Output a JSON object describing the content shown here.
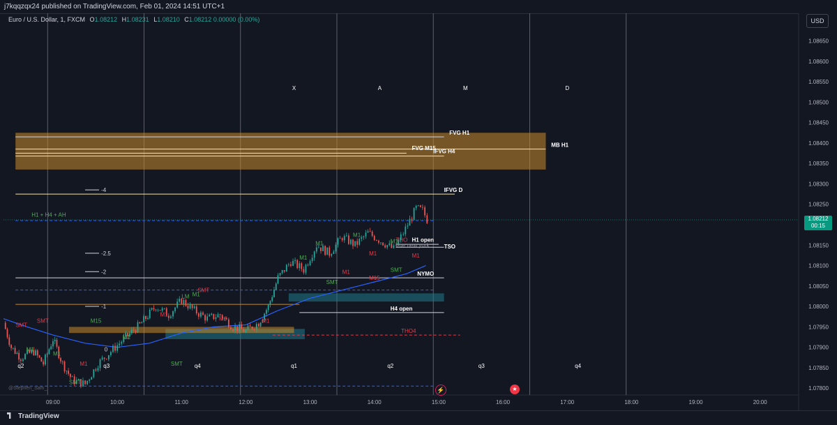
{
  "header": {
    "publisher": "j7kqqzqx24",
    "published_text": "published on TradingView.com, Feb 01, 2024 14:51 UTC+1"
  },
  "legend": {
    "symbol": "Euro / U.S. Dollar, 1, FXCM",
    "o_label": "O",
    "o_value": "1.08212",
    "h_label": "H",
    "h_value": "1.08231",
    "l_label": "L",
    "l_value": "1.08210",
    "c_label": "C",
    "c_value": "1.08212",
    "change": "0.00000 (0.00%)"
  },
  "currency_button": "USD",
  "last_price": {
    "value": "1.08212",
    "countdown": "00:15"
  },
  "footer": {
    "brand": "TradingView",
    "watermark": "@Stephen_Sam_"
  },
  "icons": {
    "bolt": "lightning-icon",
    "flag": "us-flag-icon"
  },
  "colors": {
    "background": "#131722",
    "up": "#26a69a",
    "down": "#ef5350",
    "zone_orange": "#c88a2a",
    "zone_teal": "#1f7a8c",
    "ma": "#2962ff",
    "m1_label_green": "#4caf50",
    "m1_label_red": "#f23645"
  },
  "chart_data": {
    "type": "candlestick",
    "y_axis": {
      "ticks": [
        1.0865,
        1.086,
        1.0855,
        1.085,
        1.0845,
        1.084,
        1.0835,
        1.083,
        1.0825,
        1.082,
        1.0815,
        1.081,
        1.0805,
        1.08,
        1.0795,
        1.079,
        1.0785,
        1.078
      ],
      "tick_labels": [
        "1.08650",
        "1.08600",
        "1.08550",
        "1.08500",
        "1.08450",
        "1.08400",
        "1.08350",
        "1.08300",
        "1.08250",
        "1.08200",
        "1.08150",
        "1.08100",
        "1.08050",
        "1.08000",
        "1.07950",
        "1.07900",
        "1.07850",
        "1.07800"
      ],
      "range": [
        1.07785,
        1.08685
      ]
    },
    "x_axis": {
      "tick_labels": [
        "09:00",
        "10:00",
        "11:00",
        "12:00",
        "13:00",
        "14:00",
        "15:00",
        "16:00",
        "17:00",
        "18:00",
        "19:00",
        "20:00"
      ],
      "range_hours": [
        8.23,
        20.6
      ]
    },
    "price_path": [
      [
        8.23,
        1.0796
      ],
      [
        8.35,
        1.079
      ],
      [
        8.5,
        1.07875
      ],
      [
        8.7,
        1.0789
      ],
      [
        8.85,
        1.0786
      ],
      [
        9.0,
        1.0792
      ],
      [
        9.15,
        1.0786
      ],
      [
        9.3,
        1.0782
      ],
      [
        9.5,
        1.0781
      ],
      [
        9.7,
        1.0786
      ],
      [
        9.9,
        1.0789
      ],
      [
        10.1,
        1.0792
      ],
      [
        10.35,
        1.07955
      ],
      [
        10.6,
        1.08
      ],
      [
        10.8,
        1.0798
      ],
      [
        11.0,
        1.08015
      ],
      [
        11.2,
        1.0799
      ],
      [
        11.4,
        1.0797
      ],
      [
        11.6,
        1.0798
      ],
      [
        11.8,
        1.0795
      ],
      [
        12.0,
        1.0794
      ],
      [
        12.2,
        1.0796
      ],
      [
        12.35,
        1.08
      ],
      [
        12.5,
        1.0807
      ],
      [
        12.7,
        1.0811
      ],
      [
        12.9,
        1.0809
      ],
      [
        13.1,
        1.0815
      ],
      [
        13.3,
        1.0813
      ],
      [
        13.5,
        1.0817
      ],
      [
        13.7,
        1.0815
      ],
      [
        13.9,
        1.0818
      ],
      [
        14.1,
        1.0816
      ],
      [
        14.3,
        1.0814
      ],
      [
        14.45,
        1.0818
      ],
      [
        14.55,
        1.0821
      ],
      [
        14.65,
        1.0824
      ],
      [
        14.75,
        1.08235
      ],
      [
        14.82,
        1.08212
      ]
    ],
    "session_separators": [
      "08:55",
      "10:25",
      "11:55",
      "13:25",
      "14:55",
      "16:25",
      "17:55"
    ],
    "session_labels": [
      {
        "text": "X",
        "x": "12:45",
        "y": 1.0853
      },
      {
        "text": "A",
        "x": "14:05",
        "y": 1.0853
      },
      {
        "text": "M",
        "x": "15:25",
        "y": 1.0853
      },
      {
        "text": "D",
        "x": "17:00",
        "y": 1.0853
      },
      {
        "text": "q2",
        "x": "08:30",
        "y": 1.0785
      },
      {
        "text": "q3",
        "x": "09:50",
        "y": 1.0785
      },
      {
        "text": "q4",
        "x": "11:15",
        "y": 1.0785
      },
      {
        "text": "q1",
        "x": "12:45",
        "y": 1.0785
      },
      {
        "text": "q2",
        "x": "14:15",
        "y": 1.0785
      },
      {
        "text": "q3",
        "x": "15:40",
        "y": 1.0785
      },
      {
        "text": "q4",
        "x": "17:10",
        "y": 1.0785
      }
    ],
    "zones": [
      {
        "label": "FVG H1 / IFVG H4 zone",
        "top": 1.08425,
        "bottom": 1.08335,
        "start": "08:25",
        "end": "16:40",
        "color": "#c88a2a"
      },
      {
        "label": "teal zone",
        "top": 1.08032,
        "bottom": 1.08012,
        "start": "12:40",
        "end": "15:05",
        "color": "#1f7a8c"
      },
      {
        "label": "teal zone low",
        "top": 1.07945,
        "bottom": 1.0792,
        "start": "10:45",
        "end": "12:55",
        "color": "#1f7a8c"
      },
      {
        "label": "orange zone low",
        "top": 1.0795,
        "bottom": 1.07935,
        "start": "09:15",
        "end": "12:45",
        "color": "#c88a2a"
      }
    ],
    "levels": [
      {
        "label": "FVG H1",
        "price": 1.08415,
        "start": "08:25",
        "end": "15:05",
        "color": "#d1d4dc",
        "style": "solid"
      },
      {
        "label": "FVG M15",
        "price": 1.08375,
        "start": "08:25",
        "end": "14:30",
        "color": "#f5e6a8",
        "style": "solid"
      },
      {
        "label": "IFVG H4",
        "price": 1.08368,
        "start": "08:25",
        "end": "15:05",
        "color": "#f5e6a8",
        "style": "solid"
      },
      {
        "label": "MB H1",
        "price": 1.08385,
        "start": "08:25",
        "end": "16:40",
        "color": "#f5e6a8",
        "style": "solid"
      },
      {
        "label": "IFVG D",
        "price": 1.08275,
        "start": "08:25",
        "end": "15:15",
        "color": "#f5e6a8",
        "style": "solid"
      },
      {
        "label": "H1 open",
        "price": 1.08152,
        "start": "14:20",
        "end": "15:00",
        "color": "#d1d4dc",
        "style": "solid"
      },
      {
        "label": "TSO",
        "price": 1.08145,
        "start": "14:20",
        "end": "15:05",
        "color": "#d1d4dc",
        "style": "solid"
      },
      {
        "label": "NYMO",
        "price": 1.0807,
        "start": "08:25",
        "end": "15:05",
        "color": "#d1d4dc",
        "style": "solid"
      },
      {
        "label": "H4 open",
        "price": 1.07985,
        "start": "12:50",
        "end": "15:05",
        "color": "#d1d4dc",
        "style": "solid"
      },
      {
        "label": "dashed blue 1",
        "price": 1.0821,
        "start": "08:25",
        "end": "14:55",
        "color": "#2962ff",
        "style": "dashed"
      },
      {
        "label": "dashed blue 2",
        "price": 1.0804,
        "start": "08:25",
        "end": "14:55",
        "color": "#2962ff",
        "style": "dashed"
      },
      {
        "label": "dashed blue 3",
        "price": 1.07805,
        "start": "08:25",
        "end": "14:55",
        "color": "#2962ff",
        "style": "dashed"
      },
      {
        "label": "orange line",
        "price": 1.08005,
        "start": "08:25",
        "end": "12:50",
        "color": "#c88a2a",
        "style": "solid"
      },
      {
        "label": "THO4",
        "price": 1.0793,
        "start": "12:25",
        "end": "15:20",
        "color": "#f23645",
        "style": "dashed"
      }
    ],
    "annotations": [
      {
        "text": "FVG H1",
        "x": "15:10",
        "y": 1.0842,
        "color": "#ffffff"
      },
      {
        "text": "FVG M15",
        "x": "14:35",
        "y": 1.08383,
        "color": "#ffffff"
      },
      {
        "text": "IFVG H4",
        "x": "14:55",
        "y": 1.08375,
        "color": "#ffffff"
      },
      {
        "text": "MB H1",
        "x": "16:45",
        "y": 1.0839,
        "color": "#ffffff"
      },
      {
        "text": "IFVG D",
        "x": "15:05",
        "y": 1.0828,
        "color": "#ffffff"
      },
      {
        "text": "H1 + H4 + AH",
        "x": "08:40",
        "y": 1.0822,
        "color": "#4caf50"
      },
      {
        "text": "H1 open",
        "x": "14:35",
        "y": 1.08158,
        "color": "#ffffff"
      },
      {
        "text": "THO",
        "x": "14:20",
        "y": 1.08158,
        "color": "#f23645"
      },
      {
        "text": "true new york",
        "x": "14:20",
        "y": 1.08145,
        "color": "#8a8d96"
      },
      {
        "text": "TSO",
        "x": "15:05",
        "y": 1.08142,
        "color": "#ffffff"
      },
      {
        "text": "NYMO",
        "x": "14:40",
        "y": 1.08075,
        "color": "#ffffff"
      },
      {
        "text": "H4 open",
        "x": "14:15",
        "y": 1.0799,
        "color": "#ffffff"
      },
      {
        "text": "THO4",
        "x": "14:25",
        "y": 1.07935,
        "color": "#f23645"
      },
      {
        "text": "-4",
        "x": "09:45",
        "y": 1.0828,
        "color": "#d1d4dc"
      },
      {
        "text": "-2.5",
        "x": "09:45",
        "y": 1.08125,
        "color": "#d1d4dc"
      },
      {
        "text": "-2",
        "x": "09:45",
        "y": 1.0808,
        "color": "#d1d4dc"
      },
      {
        "text": "-1",
        "x": "09:45",
        "y": 1.07995,
        "color": "#d1d4dc"
      },
      {
        "text": "0",
        "x": "09:48",
        "y": 1.0789,
        "color": "#d1d4dc"
      },
      {
        "text": "M15",
        "x": "09:35",
        "y": 1.0796,
        "color": "#4caf50"
      },
      {
        "text": "M15",
        "x": "13:55",
        "y": 1.08065,
        "color": "#f23645"
      },
      {
        "text": "SMT",
        "x": "08:25",
        "y": 1.0795,
        "color": "#f23645"
      },
      {
        "text": "SMT",
        "x": "08:45",
        "y": 1.0796,
        "color": "#f23645"
      },
      {
        "text": "SMT",
        "x": "09:15",
        "y": 1.0781,
        "color": "#4caf50"
      },
      {
        "text": "SMT",
        "x": "10:50",
        "y": 1.07855,
        "color": "#4caf50"
      },
      {
        "text": "SMT",
        "x": "11:15",
        "y": 1.08035,
        "color": "#f23645"
      },
      {
        "text": "SMT",
        "x": "13:15",
        "y": 1.08055,
        "color": "#4caf50"
      },
      {
        "text": "SMT",
        "x": "14:15",
        "y": 1.08085,
        "color": "#4caf50"
      },
      {
        "text": "LM",
        "x": "11:00",
        "y": 1.0802,
        "color": "#4caf50"
      },
      {
        "text": "M1",
        "x": "08:35",
        "y": 1.0789,
        "color": "#4caf50"
      },
      {
        "text": "M1",
        "x": "09:00",
        "y": 1.0788,
        "color": "#4caf50"
      },
      {
        "text": "M1",
        "x": "09:25",
        "y": 1.07855,
        "color": "#f23645"
      },
      {
        "text": "M1",
        "x": "10:05",
        "y": 1.0792,
        "color": "#4caf50"
      },
      {
        "text": "M1",
        "x": "10:40",
        "y": 1.07975,
        "color": "#f23645"
      },
      {
        "text": "M1",
        "x": "11:10",
        "y": 1.08025,
        "color": "#4caf50"
      },
      {
        "text": "M1",
        "x": "11:35",
        "y": 1.07965,
        "color": "#f23645"
      },
      {
        "text": "M1",
        "x": "12:15",
        "y": 1.0796,
        "color": "#f23645"
      },
      {
        "text": "M1",
        "x": "12:50",
        "y": 1.08115,
        "color": "#4caf50"
      },
      {
        "text": "M1",
        "x": "13:05",
        "y": 1.0815,
        "color": "#4caf50"
      },
      {
        "text": "M1",
        "x": "13:30",
        "y": 1.0808,
        "color": "#f23645"
      },
      {
        "text": "M1",
        "x": "13:40",
        "y": 1.0817,
        "color": "#4caf50"
      },
      {
        "text": "M1",
        "x": "13:55",
        "y": 1.08125,
        "color": "#f23645"
      },
      {
        "text": "M1",
        "x": "14:15",
        "y": 1.08155,
        "color": "#4caf50"
      },
      {
        "text": "M1",
        "x": "14:35",
        "y": 1.0812,
        "color": "#f23645"
      }
    ],
    "moving_average": [
      [
        8.23,
        1.0797
      ],
      [
        8.6,
        1.0795
      ],
      [
        9.0,
        1.0793
      ],
      [
        9.5,
        1.0791
      ],
      [
        10.0,
        1.079
      ],
      [
        10.5,
        1.0791
      ],
      [
        11.0,
        1.07935
      ],
      [
        11.5,
        1.0795
      ],
      [
        12.0,
        1.07955
      ],
      [
        12.5,
        1.0799
      ],
      [
        13.0,
        1.0802
      ],
      [
        13.5,
        1.0804
      ],
      [
        14.0,
        1.0806
      ],
      [
        14.5,
        1.0808
      ],
      [
        14.8,
        1.081
      ]
    ]
  }
}
